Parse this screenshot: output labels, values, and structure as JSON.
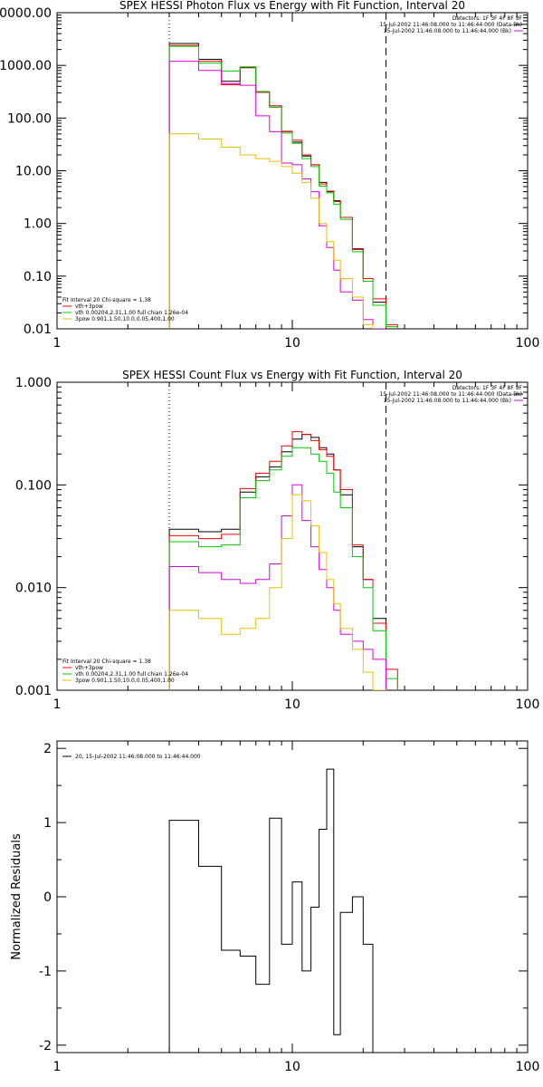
{
  "chart_data": [
    {
      "type": "line",
      "title": "SPEX HESSI Photon Flux vs Energy with Fit Function, Interval 20",
      "xscale": "log",
      "yscale": "log",
      "xlim": [
        1,
        100
      ],
      "ylim": [
        0.01,
        10000
      ],
      "x_ticks": [
        "1",
        "10",
        "100"
      ],
      "y_ticks": [
        "0.01",
        "0.10",
        "1.00",
        "10.00",
        "100.00",
        "1000.00",
        "10000.00"
      ],
      "edges": [
        3,
        4,
        5,
        6,
        7,
        8,
        9,
        10,
        11,
        12,
        13,
        14,
        15,
        16,
        18,
        20,
        22,
        25,
        28
      ],
      "info_lines": [
        "Detectors: 1F 3F 4F 8F 9F",
        "15-Jul-2002 11:46:08.000 to 11:46:44.000 (Data-Bk)",
        "15-Jul-2002 11:46:08.000 to 11:46:44.000 (Bk)"
      ],
      "legend_lines": [
        "Fit Interval 20   Chi-square = 1.38",
        "vth+3pow",
        "vth 0.00204,2.31,1.00  full chian 1.26e-04",
        "3pow 0.901,1.50,10.0,0.05,400,1.00"
      ],
      "vlines": [
        {
          "x": 3,
          "style": "dotted"
        },
        {
          "x": 25,
          "style": "dashed"
        }
      ],
      "series": [
        {
          "color": "#000000",
          "values": [
            2600,
            1300,
            500,
            900,
            310,
            170,
            56,
            35,
            19,
            13,
            6,
            4,
            2.7,
            1.3,
            0.33,
            0.09,
            0.032,
            null
          ]
        },
        {
          "color": "#ff0000",
          "values": [
            2400,
            1200,
            430,
            920,
            310,
            170,
            55,
            38,
            20,
            13,
            5.6,
            4.1,
            2.6,
            1.3,
            0.32,
            0.09,
            0.037,
            0.012
          ]
        },
        {
          "color": "#00cc00",
          "values": [
            2300,
            1100,
            780,
            940,
            320,
            160,
            52,
            33,
            17,
            12,
            5.1,
            3.8,
            2.3,
            1.2,
            0.29,
            0.08,
            0.028,
            0.011
          ]
        },
        {
          "color": "#e000e0",
          "values": [
            1200,
            800,
            450,
            420,
            110,
            55,
            14,
            13,
            7,
            4,
            0.9,
            0.35,
            0.13,
            0.05,
            0.035,
            0.015,
            0.01,
            null
          ]
        },
        {
          "color": "#e8c000",
          "values": [
            50,
            40,
            28,
            20,
            17,
            15,
            12,
            9,
            6,
            3,
            1,
            0.45,
            0.2,
            0.09,
            0.04,
            0.012,
            null,
            null
          ]
        }
      ]
    },
    {
      "type": "line",
      "title": "SPEX HESSI Count Flux vs Energy with Fit Function, Interval 20",
      "xscale": "log",
      "yscale": "log",
      "xlim": [
        1,
        100
      ],
      "ylim": [
        0.001,
        1
      ],
      "x_ticks": [
        "1",
        "10",
        "100"
      ],
      "y_ticks": [
        "0.001",
        "0.010",
        "0.100",
        "1.000"
      ],
      "edges": [
        3,
        4,
        5,
        6,
        7,
        8,
        9,
        10,
        11,
        12,
        13,
        14,
        15,
        16,
        18,
        20,
        22,
        25,
        28
      ],
      "info_lines": [
        "Detectors: 1F 3F 4F 8F 9F",
        "15-Jul-2002 11:46:08.000 to 11:46:44.000 (Data-Bk)",
        "15-Jul-2002 11:46:08.000 to 11:46:44.000 (Bk)"
      ],
      "legend_lines": [
        "Fit Interval 20   Chi-square = 1.38",
        "vth+3pow",
        "vth 0.00204,2.31,1.00  full chian 1.26e-04",
        "3pow 0.901,1.50,10.0,0.05,400,1.00"
      ],
      "vlines": [
        {
          "x": 3,
          "style": "dotted"
        },
        {
          "x": 25,
          "style": "dashed"
        }
      ],
      "series": [
        {
          "color": "#000000",
          "values": [
            0.037,
            0.035,
            0.037,
            0.085,
            0.12,
            0.15,
            0.21,
            0.28,
            0.31,
            0.29,
            0.23,
            0.2,
            0.14,
            0.08,
            0.025,
            0.012,
            0.005,
            null
          ]
        },
        {
          "color": "#ff0000",
          "values": [
            0.032,
            0.03,
            0.033,
            0.092,
            0.13,
            0.17,
            0.24,
            0.33,
            0.31,
            0.27,
            0.22,
            0.19,
            0.14,
            0.09,
            0.026,
            0.012,
            0.0045,
            0.0016
          ]
        },
        {
          "color": "#00cc00",
          "values": [
            0.028,
            0.025,
            0.026,
            0.075,
            0.11,
            0.14,
            0.19,
            0.23,
            0.23,
            0.2,
            0.17,
            0.13,
            0.085,
            0.06,
            0.02,
            0.01,
            0.0038,
            0.0013
          ]
        },
        {
          "color": "#e000e0",
          "values": [
            0.016,
            0.014,
            0.012,
            0.011,
            0.012,
            0.017,
            0.05,
            0.1,
            0.045,
            0.025,
            0.015,
            0.01,
            0.006,
            0.0035,
            0.003,
            0.0025,
            0.002,
            null
          ]
        },
        {
          "color": "#e8c000",
          "values": [
            0.006,
            0.005,
            0.0035,
            0.004,
            0.005,
            0.01,
            0.03,
            0.08,
            0.07,
            0.04,
            0.022,
            0.012,
            0.007,
            0.004,
            0.0025,
            0.0015,
            0.001,
            null
          ]
        }
      ]
    },
    {
      "type": "line",
      "title": "",
      "xscale": "log",
      "yscale": "linear",
      "xlim": [
        1,
        100
      ],
      "ylim": [
        -2.1,
        2.1
      ],
      "x_ticks": [
        "1",
        "10",
        "100"
      ],
      "y_ticks": [
        "-2",
        "-1",
        "0",
        "1",
        "2"
      ],
      "ylabel": "Normalized Residuals",
      "legend_lines": [
        "20, 15-Jul-2002 11:46:08.000 to 11:46:44.000"
      ],
      "edges": [
        3,
        4,
        5,
        6,
        7,
        8,
        9,
        10,
        11,
        12,
        13,
        14,
        15,
        16,
        18,
        20,
        22,
        25
      ],
      "series": [
        {
          "color": "#000000",
          "values": [
            1.03,
            0.41,
            -0.72,
            -0.8,
            -1.18,
            1.06,
            -0.64,
            0.2,
            -1.0,
            -0.14,
            0.91,
            1.72,
            -1.86,
            -0.21,
            0.0,
            -0.64,
            -2.1
          ]
        }
      ]
    }
  ]
}
